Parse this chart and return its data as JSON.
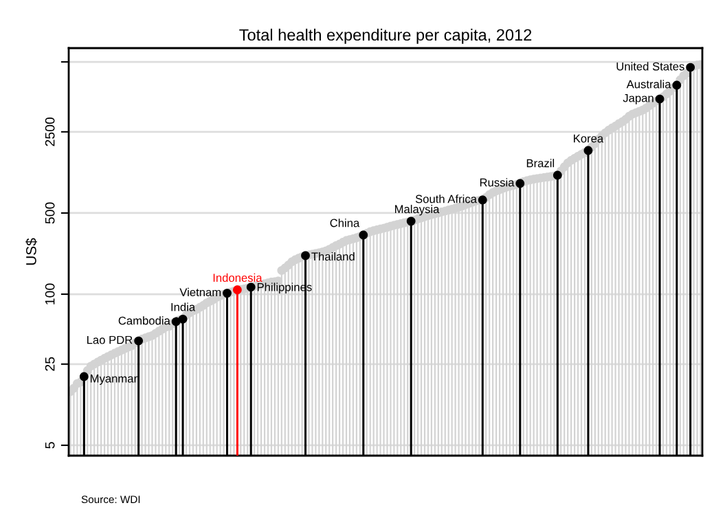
{
  "chart_data": {
    "type": "lollipop",
    "title": "Total health expenditure per capita, 2012",
    "ylabel": "US$",
    "categories": [
      null,
      null,
      null,
      null,
      null,
      null,
      null,
      null,
      null,
      null,
      null,
      null,
      null,
      null,
      null,
      null,
      null,
      null,
      null,
      null,
      null,
      null,
      null,
      null,
      null,
      null,
      null,
      null,
      null,
      null,
      null,
      null,
      null,
      null,
      null,
      null,
      null,
      null,
      null,
      null,
      null,
      null,
      null,
      null,
      null,
      null,
      null,
      null,
      null,
      null,
      null,
      null,
      null,
      null,
      null,
      null,
      null,
      null,
      null,
      null,
      null,
      null,
      null,
      null,
      null,
      null,
      null,
      null,
      null,
      null,
      null,
      null,
      null,
      null,
      null,
      null,
      null,
      null,
      null,
      null,
      null,
      null,
      null,
      null,
      null,
      null,
      null,
      null,
      null,
      null,
      null,
      null,
      null,
      null,
      null,
      null,
      null,
      null,
      null,
      null,
      null,
      null,
      null,
      null,
      null,
      null,
      null,
      null,
      null,
      null,
      null,
      null,
      null,
      null,
      null,
      null,
      null,
      null,
      null,
      null,
      null,
      null,
      null,
      null,
      null,
      null,
      null,
      null,
      null,
      null,
      null,
      null,
      null,
      null,
      null,
      null,
      null,
      null,
      null,
      null,
      null,
      null,
      null,
      null,
      null,
      null,
      null,
      null,
      null,
      null,
      null,
      null,
      null,
      null,
      null,
      null,
      null,
      null,
      null,
      null,
      null,
      null,
      null,
      null,
      null,
      null,
      null,
      null,
      null,
      null,
      null,
      null,
      null,
      null,
      null,
      null,
      null,
      null,
      null,
      null,
      null,
      null,
      null,
      null,
      null,
      null
    ],
    "values": [
      14.5,
      15.5,
      17,
      17.5,
      19.5,
      22,
      24,
      25,
      26,
      27,
      28,
      29,
      30,
      31,
      32,
      33,
      34,
      35,
      36,
      38,
      39.6,
      41,
      42,
      43,
      44,
      46,
      48,
      50,
      52,
      53,
      56,
      58,
      60,
      61,
      66,
      69,
      72,
      74,
      77,
      80,
      84,
      87,
      90,
      94,
      97,
      100,
      102,
      104,
      106,
      109,
      110,
      111,
      113,
      115,
      117,
      119,
      121,
      123,
      125,
      127,
      128,
      130,
      160,
      168,
      178,
      190,
      198,
      204,
      210,
      215,
      218,
      221,
      224,
      227,
      231,
      236,
      243,
      252,
      262,
      270,
      280,
      290,
      295,
      300,
      306,
      314,
      323,
      335,
      345,
      352,
      358,
      364,
      370,
      377,
      385,
      392,
      398,
      405,
      412,
      418,
      425,
      435,
      445,
      455,
      465,
      475,
      484,
      493,
      502,
      511,
      520,
      530,
      540,
      550,
      562,
      575,
      590,
      605,
      620,
      635,
      642,
      648,
      680,
      720,
      750,
      775,
      795,
      815,
      835,
      850,
      865,
      880,
      898,
      930,
      950,
      965,
      978,
      990,
      1000,
      1010,
      1020,
      1030,
      1042,
      1057,
      1150,
      1250,
      1350,
      1420,
      1480,
      1540,
      1600,
      1660,
      1726,
      1850,
      1980,
      2150,
      2300,
      2450,
      2580,
      2700,
      2800,
      2940,
      3050,
      3200,
      3400,
      3550,
      3650,
      3750,
      3850,
      4000,
      4200,
      4400,
      4600,
      4793,
      5000,
      5300,
      5600,
      6000,
      6300,
      7000,
      7600,
      8000,
      8970,
      9200,
      9400,
      9500
    ],
    "colors": [
      "#d3d3d3",
      "#d3d3d3",
      "#d3d3d3",
      "#d3d3d3",
      "#000000",
      "#d3d3d3",
      "#d3d3d3",
      "#d3d3d3",
      "#d3d3d3",
      "#d3d3d3",
      "#d3d3d3",
      "#d3d3d3",
      "#d3d3d3",
      "#d3d3d3",
      "#d3d3d3",
      "#d3d3d3",
      "#d3d3d3",
      "#d3d3d3",
      "#d3d3d3",
      "#d3d3d3",
      "#000000",
      "#d3d3d3",
      "#d3d3d3",
      "#d3d3d3",
      "#d3d3d3",
      "#d3d3d3",
      "#d3d3d3",
      "#d3d3d3",
      "#d3d3d3",
      "#d3d3d3",
      "#d3d3d3",
      "#000000",
      "#d3d3d3",
      "#000000",
      "#d3d3d3",
      "#d3d3d3",
      "#d3d3d3",
      "#d3d3d3",
      "#d3d3d3",
      "#d3d3d3",
      "#d3d3d3",
      "#d3d3d3",
      "#d3d3d3",
      "#d3d3d3",
      "#d3d3d3",
      "#d3d3d3",
      "#000000",
      "#d3d3d3",
      "#d3d3d3",
      "#ff0000",
      "#d3d3d3",
      "#d3d3d3",
      "#d3d3d3",
      "#000000",
      "#d3d3d3",
      "#d3d3d3",
      "#d3d3d3",
      "#d3d3d3",
      "#d3d3d3",
      "#d3d3d3",
      "#d3d3d3",
      "#d3d3d3",
      "#d3d3d3",
      "#d3d3d3",
      "#d3d3d3",
      "#d3d3d3",
      "#d3d3d3",
      "#d3d3d3",
      "#d3d3d3",
      "#000000",
      "#d3d3d3",
      "#d3d3d3",
      "#d3d3d3",
      "#d3d3d3",
      "#d3d3d3",
      "#d3d3d3",
      "#d3d3d3",
      "#d3d3d3",
      "#d3d3d3",
      "#d3d3d3",
      "#d3d3d3",
      "#d3d3d3",
      "#d3d3d3",
      "#d3d3d3",
      "#d3d3d3",
      "#d3d3d3",
      "#000000",
      "#d3d3d3",
      "#d3d3d3",
      "#d3d3d3",
      "#d3d3d3",
      "#d3d3d3",
      "#d3d3d3",
      "#d3d3d3",
      "#d3d3d3",
      "#d3d3d3",
      "#d3d3d3",
      "#d3d3d3",
      "#d3d3d3",
      "#d3d3d3",
      "#000000",
      "#d3d3d3",
      "#d3d3d3",
      "#d3d3d3",
      "#d3d3d3",
      "#d3d3d3",
      "#d3d3d3",
      "#d3d3d3",
      "#d3d3d3",
      "#d3d3d3",
      "#d3d3d3",
      "#d3d3d3",
      "#d3d3d3",
      "#d3d3d3",
      "#d3d3d3",
      "#d3d3d3",
      "#d3d3d3",
      "#d3d3d3",
      "#d3d3d3",
      "#d3d3d3",
      "#d3d3d3",
      "#000000",
      "#d3d3d3",
      "#d3d3d3",
      "#d3d3d3",
      "#d3d3d3",
      "#d3d3d3",
      "#d3d3d3",
      "#d3d3d3",
      "#d3d3d3",
      "#d3d3d3",
      "#d3d3d3",
      "#000000",
      "#d3d3d3",
      "#d3d3d3",
      "#d3d3d3",
      "#d3d3d3",
      "#d3d3d3",
      "#d3d3d3",
      "#d3d3d3",
      "#d3d3d3",
      "#d3d3d3",
      "#d3d3d3",
      "#000000",
      "#d3d3d3",
      "#d3d3d3",
      "#d3d3d3",
      "#d3d3d3",
      "#d3d3d3",
      "#d3d3d3",
      "#d3d3d3",
      "#d3d3d3",
      "#000000",
      "#d3d3d3",
      "#d3d3d3",
      "#d3d3d3",
      "#d3d3d3",
      "#d3d3d3",
      "#d3d3d3",
      "#d3d3d3",
      "#d3d3d3",
      "#d3d3d3",
      "#d3d3d3",
      "#d3d3d3",
      "#d3d3d3",
      "#d3d3d3",
      "#d3d3d3",
      "#d3d3d3",
      "#d3d3d3",
      "#d3d3d3",
      "#d3d3d3",
      "#d3d3d3",
      "#d3d3d3",
      "#000000",
      "#d3d3d3",
      "#d3d3d3",
      "#d3d3d3",
      "#d3d3d3",
      "#000000",
      "#d3d3d3",
      "#d3d3d3",
      "#d3d3d3",
      "#000000",
      "#d3d3d3",
      "#d3d3d3",
      "#d3d3d3"
    ],
    "value_labels": [
      null,
      null,
      null,
      null,
      "Myanmar",
      null,
      null,
      null,
      null,
      null,
      null,
      null,
      null,
      null,
      null,
      null,
      null,
      null,
      null,
      null,
      "Lao PDR",
      null,
      null,
      null,
      null,
      null,
      null,
      null,
      null,
      null,
      null,
      "Cambodia",
      null,
      "India",
      null,
      null,
      null,
      null,
      null,
      null,
      null,
      null,
      null,
      null,
      null,
      null,
      "Vietnam",
      null,
      null,
      "Indonesia",
      null,
      null,
      null,
      "Philippines",
      null,
      null,
      null,
      null,
      null,
      null,
      null,
      null,
      null,
      null,
      null,
      null,
      null,
      null,
      null,
      "Thailand",
      null,
      null,
      null,
      null,
      null,
      null,
      null,
      null,
      null,
      null,
      null,
      null,
      null,
      null,
      null,
      null,
      "China",
      null,
      null,
      null,
      null,
      null,
      null,
      null,
      null,
      null,
      null,
      null,
      null,
      null,
      "Malaysia",
      null,
      null,
      null,
      null,
      null,
      null,
      null,
      null,
      null,
      null,
      null,
      null,
      null,
      null,
      null,
      null,
      null,
      null,
      null,
      null,
      "South Africa",
      null,
      null,
      null,
      null,
      null,
      null,
      null,
      null,
      null,
      null,
      "Russia",
      null,
      null,
      null,
      null,
      null,
      null,
      null,
      null,
      null,
      null,
      "Brazil",
      null,
      null,
      null,
      null,
      null,
      null,
      null,
      null,
      "Korea",
      null,
      null,
      null,
      null,
      null,
      null,
      null,
      null,
      null,
      null,
      null,
      null,
      null,
      null,
      null,
      null,
      null,
      null,
      null,
      null,
      "Japan",
      null,
      null,
      null,
      null,
      "Australia",
      null,
      null,
      null,
      "United States",
      null,
      null,
      null
    ],
    "annotations": [
      "Source: WDI"
    ],
    "log": "y",
    "ylim": [
      4.07,
      13150
    ],
    "yticks": [
      5,
      25,
      100,
      500,
      2500,
      {
        "value": 10000,
        "label": null
      }
    ],
    "tick_labels": "y",
    "grid": "y",
    "marker": "circle",
    "legend": false
  }
}
